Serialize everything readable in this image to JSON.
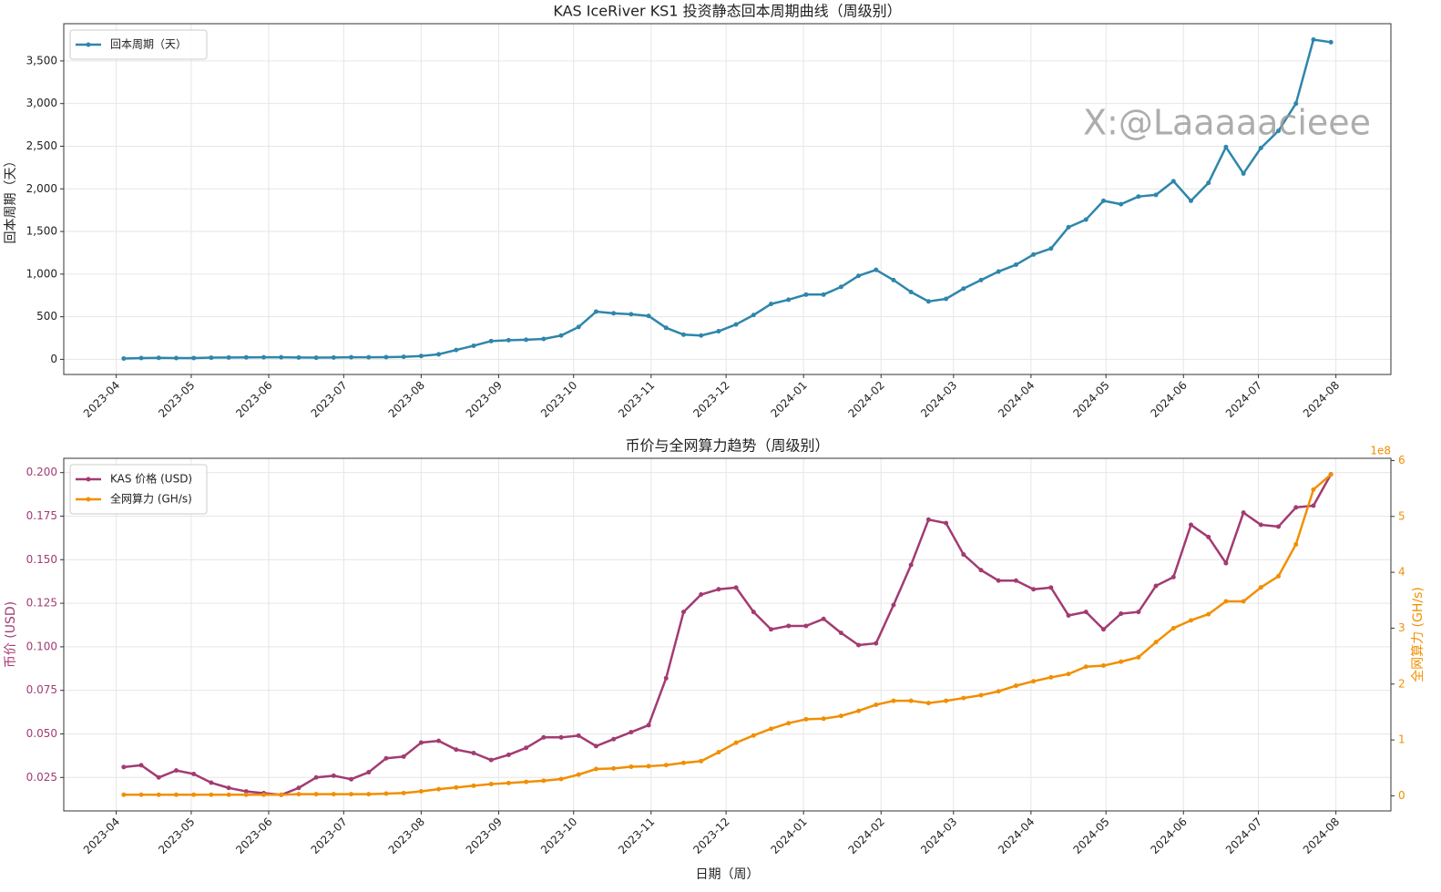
{
  "chart_data": [
    {
      "type": "line",
      "title": "KAS IceRiver KS1 投资静态回本周期曲线（周级别）",
      "ylabel": "回本周期（天）",
      "annotations": [
        "X:@Laaaaacieee"
      ],
      "x": [
        "2023-04-04",
        "2023-04-11",
        "2023-04-18",
        "2023-04-25",
        "2023-05-02",
        "2023-05-09",
        "2023-05-16",
        "2023-05-23",
        "2023-05-30",
        "2023-06-06",
        "2023-06-13",
        "2023-06-20",
        "2023-06-27",
        "2023-07-04",
        "2023-07-11",
        "2023-07-18",
        "2023-07-25",
        "2023-08-01",
        "2023-08-08",
        "2023-08-15",
        "2023-08-22",
        "2023-08-29",
        "2023-09-05",
        "2023-09-12",
        "2023-09-19",
        "2023-09-26",
        "2023-10-03",
        "2023-10-10",
        "2023-10-17",
        "2023-10-24",
        "2023-10-31",
        "2023-11-07",
        "2023-11-14",
        "2023-11-21",
        "2023-11-28",
        "2023-12-05",
        "2023-12-12",
        "2023-12-19",
        "2023-12-26",
        "2024-01-02",
        "2024-01-09",
        "2024-01-16",
        "2024-01-23",
        "2024-01-30",
        "2024-02-06",
        "2024-02-13",
        "2024-02-20",
        "2024-02-27",
        "2024-03-05",
        "2024-03-12",
        "2024-03-19",
        "2024-03-26",
        "2024-04-02",
        "2024-04-09",
        "2024-04-16",
        "2024-04-23",
        "2024-04-30",
        "2024-05-07",
        "2024-05-14",
        "2024-05-21",
        "2024-05-28",
        "2024-06-04",
        "2024-06-11",
        "2024-06-18",
        "2024-06-25",
        "2024-07-02",
        "2024-07-09",
        "2024-07-16",
        "2024-07-23",
        "2024-07-30"
      ],
      "series": [
        {
          "name": "回本周期（天）",
          "color": "#2e86ab",
          "values": [
            10,
            15,
            18,
            15,
            16,
            20,
            22,
            24,
            25,
            25,
            22,
            20,
            22,
            25,
            25,
            26,
            30,
            40,
            60,
            110,
            160,
            215,
            225,
            230,
            240,
            280,
            380,
            560,
            540,
            530,
            510,
            370,
            290,
            280,
            330,
            410,
            520,
            650,
            700,
            760,
            760,
            850,
            980,
            1050,
            930,
            790,
            680,
            710,
            830,
            930,
            1030,
            1110,
            1230,
            1300,
            1550,
            1640,
            1860,
            1820,
            1910,
            1930,
            2090,
            1860,
            2070,
            2490,
            2180,
            2480,
            2680,
            3000,
            3750,
            3720
          ]
        }
      ],
      "xlim": [
        "2023-03-11",
        "2024-08-23"
      ],
      "xticks": [
        {
          "value": "2023-04-01",
          "label": "2023-04"
        },
        {
          "value": "2023-05-01",
          "label": "2023-05"
        },
        {
          "value": "2023-06-01",
          "label": "2023-06"
        },
        {
          "value": "2023-07-01",
          "label": "2023-07"
        },
        {
          "value": "2023-08-01",
          "label": "2023-08"
        },
        {
          "value": "2023-09-01",
          "label": "2023-09"
        },
        {
          "value": "2023-10-01",
          "label": "2023-10"
        },
        {
          "value": "2023-11-01",
          "label": "2023-11"
        },
        {
          "value": "2023-12-01",
          "label": "2023-12"
        },
        {
          "value": "2024-01-01",
          "label": "2024-01"
        },
        {
          "value": "2024-02-01",
          "label": "2024-02"
        },
        {
          "value": "2024-03-01",
          "label": "2024-03"
        },
        {
          "value": "2024-04-01",
          "label": "2024-04"
        },
        {
          "value": "2024-05-01",
          "label": "2024-05"
        },
        {
          "value": "2024-06-01",
          "label": "2024-06"
        },
        {
          "value": "2024-07-01",
          "label": "2024-07"
        },
        {
          "value": "2024-08-01",
          "label": "2024-08"
        }
      ],
      "ylim": [
        -177,
        3937
      ],
      "yticks": [
        0,
        500,
        {
          "value": 1000,
          "label": "1,000"
        },
        {
          "value": 1500,
          "label": "1,500"
        },
        {
          "value": 2000,
          "label": "2,000"
        },
        {
          "value": 2500,
          "label": "2,500"
        },
        {
          "value": 3000,
          "label": "3,000"
        },
        {
          "value": 3500,
          "label": "3,500"
        }
      ],
      "grid": true,
      "legend": "upper left"
    },
    {
      "type": "line",
      "title": "币价与全网算力趋势（周级别）",
      "xlabel": "日期（周）",
      "ylabel": "币价 (USD)",
      "y2label": "全网算力 (GH/s)",
      "y2offset": "1e8",
      "x": [
        "2023-04-04",
        "2023-04-11",
        "2023-04-18",
        "2023-04-25",
        "2023-05-02",
        "2023-05-09",
        "2023-05-16",
        "2023-05-23",
        "2023-05-30",
        "2023-06-06",
        "2023-06-13",
        "2023-06-20",
        "2023-06-27",
        "2023-07-04",
        "2023-07-11",
        "2023-07-18",
        "2023-07-25",
        "2023-08-01",
        "2023-08-08",
        "2023-08-15",
        "2023-08-22",
        "2023-08-29",
        "2023-09-05",
        "2023-09-12",
        "2023-09-19",
        "2023-09-26",
        "2023-10-03",
        "2023-10-10",
        "2023-10-17",
        "2023-10-24",
        "2023-10-31",
        "2023-11-07",
        "2023-11-14",
        "2023-11-21",
        "2023-11-28",
        "2023-12-05",
        "2023-12-12",
        "2023-12-19",
        "2023-12-26",
        "2024-01-02",
        "2024-01-09",
        "2024-01-16",
        "2024-01-23",
        "2024-01-30",
        "2024-02-06",
        "2024-02-13",
        "2024-02-20",
        "2024-02-27",
        "2024-03-05",
        "2024-03-12",
        "2024-03-19",
        "2024-03-26",
        "2024-04-02",
        "2024-04-09",
        "2024-04-16",
        "2024-04-23",
        "2024-04-30",
        "2024-05-07",
        "2024-05-14",
        "2024-05-21",
        "2024-05-28",
        "2024-06-04",
        "2024-06-11",
        "2024-06-18",
        "2024-06-25",
        "2024-07-02",
        "2024-07-09",
        "2024-07-16",
        "2024-07-23",
        "2024-07-30"
      ],
      "series": [
        {
          "name": "KAS 价格 (USD)",
          "color": "#a23b72",
          "values": [
            0.031,
            0.032,
            0.025,
            0.029,
            0.027,
            0.022,
            0.019,
            0.017,
            0.016,
            0.015,
            0.019,
            0.025,
            0.026,
            0.024,
            0.028,
            0.036,
            0.037,
            0.045,
            0.046,
            0.041,
            0.039,
            0.035,
            0.038,
            0.042,
            0.048,
            0.048,
            0.049,
            0.043,
            0.047,
            0.051,
            0.055,
            0.082,
            0.12,
            0.13,
            0.133,
            0.134,
            0.12,
            0.11,
            0.112,
            0.112,
            0.116,
            0.108,
            0.101,
            0.102,
            0.124,
            0.147,
            0.173,
            0.171,
            0.153,
            0.144,
            0.138,
            0.138,
            0.133,
            0.134,
            0.118,
            0.12,
            0.11,
            0.119,
            0.12,
            0.135,
            0.14,
            0.17,
            0.163,
            0.148,
            0.177,
            0.17,
            0.169,
            0.18,
            0.181,
            0.199
          ]
        },
        {
          "name": "全网算力 (GH/s)",
          "color": "#f18f01",
          "axis": "y2",
          "values": [
            0.02,
            0.02,
            0.02,
            0.02,
            0.02,
            0.02,
            0.02,
            0.02,
            0.02,
            0.02,
            0.03,
            0.03,
            0.03,
            0.03,
            0.03,
            0.04,
            0.05,
            0.08,
            0.12,
            0.15,
            0.18,
            0.21,
            0.23,
            0.25,
            0.27,
            0.3,
            0.38,
            0.48,
            0.49,
            0.52,
            0.53,
            0.55,
            0.59,
            0.62,
            0.78,
            0.95,
            1.08,
            1.2,
            1.3,
            1.37,
            1.38,
            1.43,
            1.52,
            1.63,
            1.7,
            1.7,
            1.66,
            1.7,
            1.75,
            1.8,
            1.87,
            1.97,
            2.05,
            2.12,
            2.18,
            2.31,
            2.33,
            2.4,
            2.48,
            2.75,
            3.0,
            3.14,
            3.25,
            3.48,
            3.48,
            3.73,
            3.93,
            4.5,
            5.48,
            5.75
          ]
        }
      ],
      "xlim": [
        "2023-03-11",
        "2024-08-23"
      ],
      "xticks": [
        {
          "value": "2023-04-01",
          "label": "2023-04"
        },
        {
          "value": "2023-05-01",
          "label": "2023-05"
        },
        {
          "value": "2023-06-01",
          "label": "2023-06"
        },
        {
          "value": "2023-07-01",
          "label": "2023-07"
        },
        {
          "value": "2023-08-01",
          "label": "2023-08"
        },
        {
          "value": "2023-09-01",
          "label": "2023-09"
        },
        {
          "value": "2023-10-01",
          "label": "2023-10"
        },
        {
          "value": "2023-11-01",
          "label": "2023-11"
        },
        {
          "value": "2023-12-01",
          "label": "2023-12"
        },
        {
          "value": "2024-01-01",
          "label": "2024-01"
        },
        {
          "value": "2024-02-01",
          "label": "2024-02"
        },
        {
          "value": "2024-03-01",
          "label": "2024-03"
        },
        {
          "value": "2024-04-01",
          "label": "2024-04"
        },
        {
          "value": "2024-05-01",
          "label": "2024-05"
        },
        {
          "value": "2024-06-01",
          "label": "2024-06"
        },
        {
          "value": "2024-07-01",
          "label": "2024-07"
        },
        {
          "value": "2024-08-01",
          "label": "2024-08"
        }
      ],
      "ylim": [
        0.0058,
        0.2082
      ],
      "yticks": [
        0.025,
        {
          "value": 0.05,
          "label": "0.050"
        },
        0.075,
        {
          "value": 0.1,
          "label": "0.100"
        },
        0.125,
        {
          "value": 0.15,
          "label": "0.150"
        },
        0.175,
        {
          "value": 0.2,
          "label": "0.200"
        }
      ],
      "y2lim": [
        -0.27,
        6.04
      ],
      "y2ticks": [
        0,
        1,
        2,
        3,
        4,
        5,
        6
      ],
      "grid": true,
      "legend": "upper left"
    }
  ]
}
